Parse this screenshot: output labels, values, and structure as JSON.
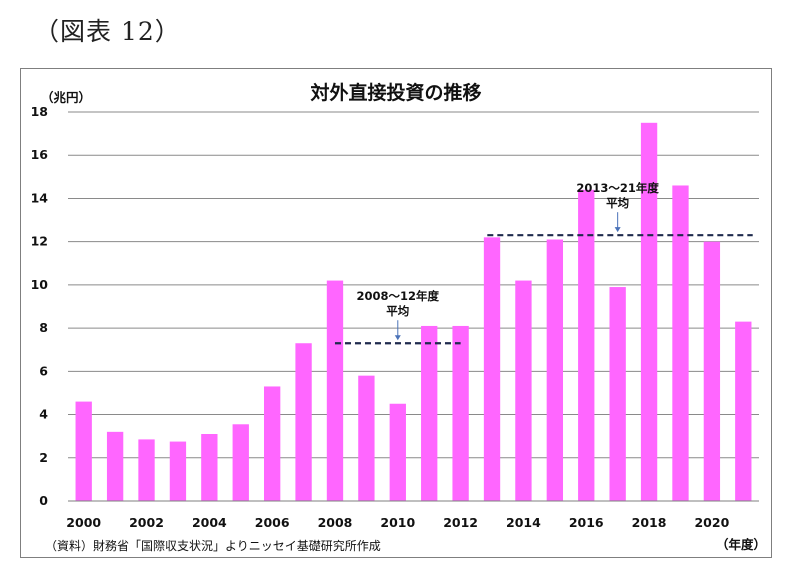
{
  "figure_label": "（図表 12）",
  "chart_data": {
    "type": "bar",
    "title": "対外直接投資の推移",
    "ylabel": "（兆円）",
    "xlabel": "（年度）",
    "ylim": [
      0,
      18
    ],
    "yticks": [
      0,
      2,
      4,
      6,
      8,
      10,
      12,
      14,
      16,
      18
    ],
    "categories": [
      "2000",
      "2001",
      "2002",
      "2003",
      "2004",
      "2005",
      "2006",
      "2007",
      "2008",
      "2009",
      "2010",
      "2011",
      "2012",
      "2013",
      "2014",
      "2015",
      "2016",
      "2017",
      "2018",
      "2019",
      "2020",
      "2021"
    ],
    "xtick_labels": [
      "2000",
      "2002",
      "2004",
      "2006",
      "2008",
      "2010",
      "2012",
      "2014",
      "2016",
      "2018",
      "2020"
    ],
    "values": [
      4.6,
      3.2,
      2.85,
      2.75,
      3.1,
      3.55,
      5.3,
      7.3,
      10.2,
      5.8,
      4.5,
      8.1,
      8.1,
      12.2,
      10.2,
      12.1,
      14.4,
      9.9,
      17.5,
      14.6,
      12.0,
      8.3
    ],
    "bar_color": "#ff66ff",
    "grid": true,
    "averages": [
      {
        "label_line1": "2008～12年度",
        "label_line2": "平均",
        "from": "2008",
        "to": "2012",
        "value": 7.3
      },
      {
        "label_line1": "2013～21年度",
        "label_line2": "平均",
        "from": "2013",
        "to": "2021",
        "value": 12.3
      }
    ],
    "average_line_color": "#1f2a4d",
    "source": "（資料）財務省「国際収支状況」よりニッセイ基礎研究所作成"
  }
}
